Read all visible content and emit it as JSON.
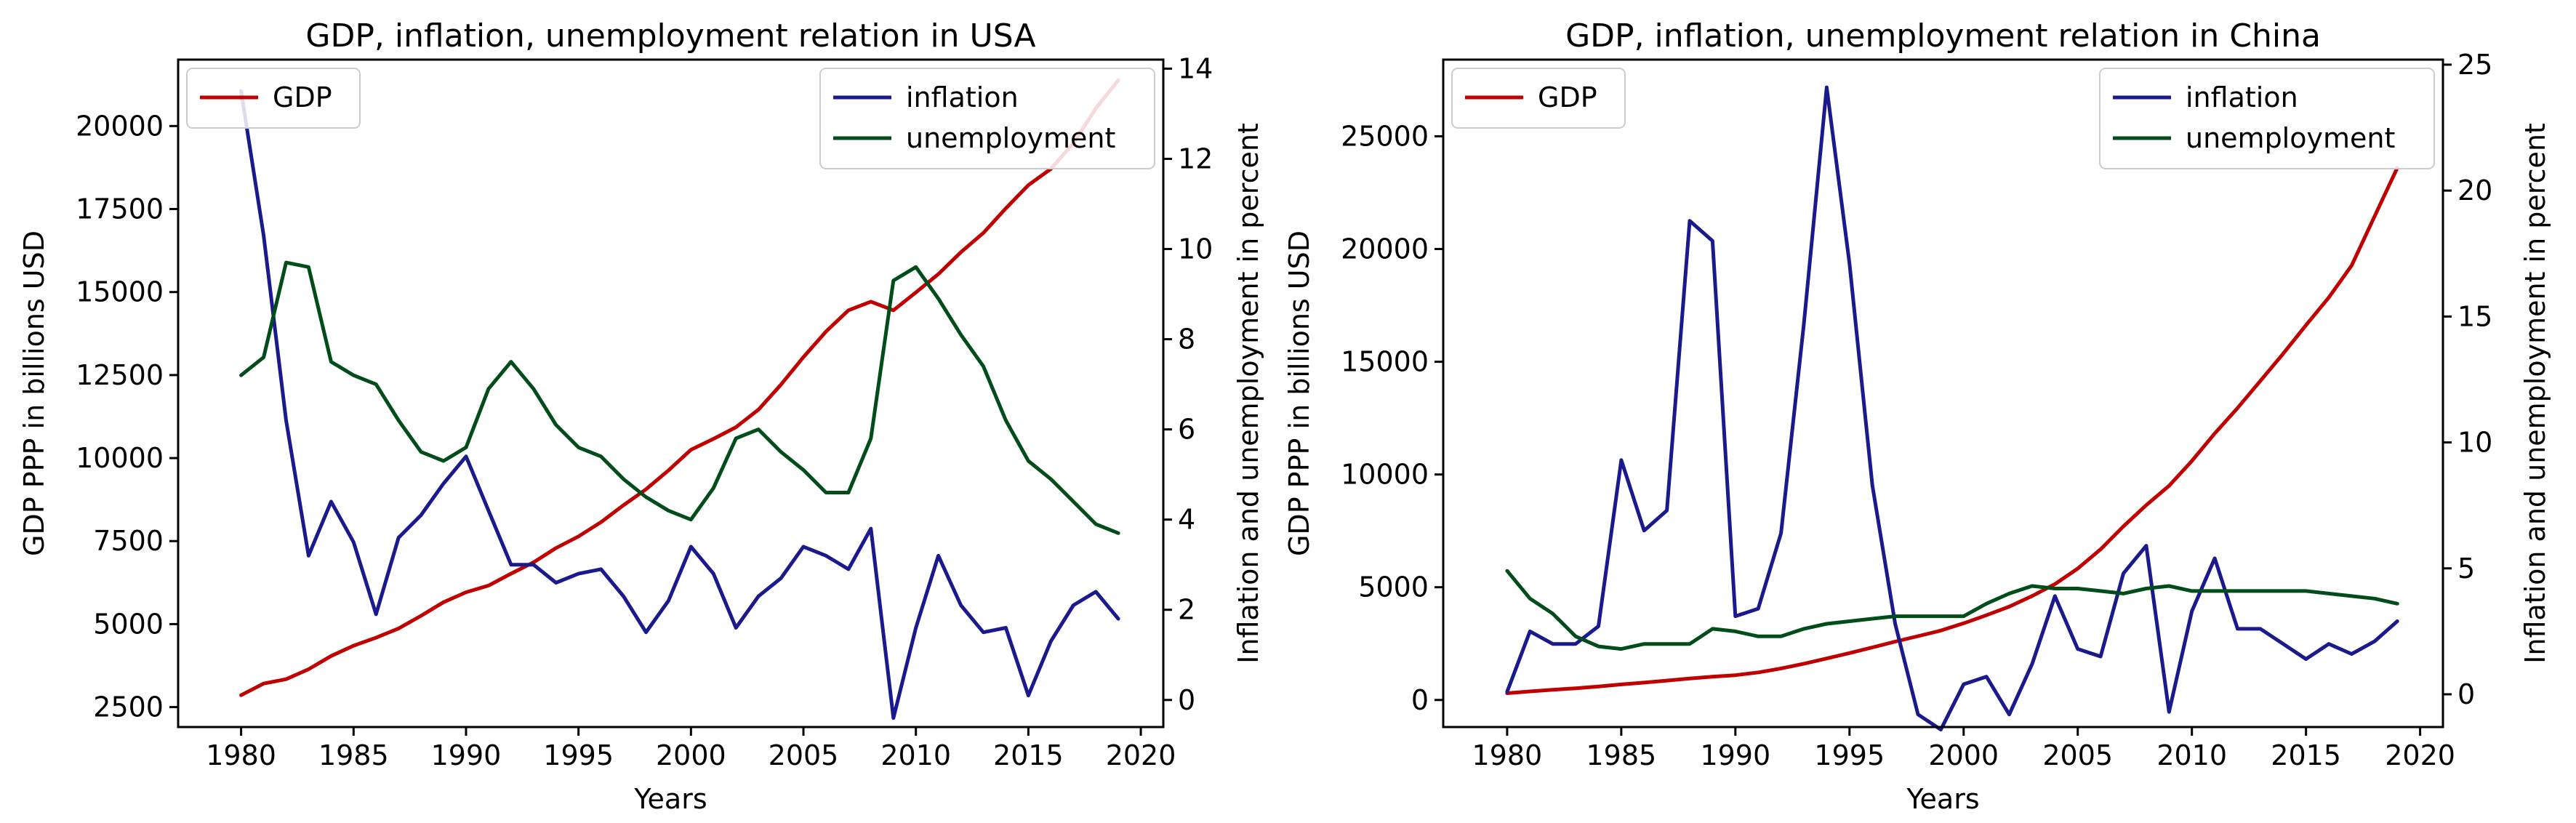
{
  "chart_data": [
    {
      "type": "line",
      "title": "GDP, inflation, unemployment relation in USA",
      "xlabel": "Years",
      "ylabel": "GDP PPP in billions USD",
      "ylabel_right": "Inflation and unemployment in percent",
      "xlim": [
        1977.2,
        2021.0
      ],
      "ylim": [
        1900,
        22000
      ],
      "ylim_right": [
        -0.6,
        14.2
      ],
      "x_ticks": [
        1980,
        1985,
        1990,
        1995,
        2000,
        2005,
        2010,
        2015,
        2020
      ],
      "y_ticks": [
        2500,
        5000,
        7500,
        10000,
        12500,
        15000,
        17500,
        20000
      ],
      "y_right_ticks": [
        0,
        2,
        4,
        6,
        8,
        10,
        12,
        14
      ],
      "x": [
        1980,
        1981,
        1982,
        1983,
        1984,
        1985,
        1986,
        1987,
        1988,
        1989,
        1990,
        1991,
        1992,
        1993,
        1994,
        1995,
        1996,
        1997,
        1998,
        1999,
        2000,
        2001,
        2002,
        2003,
        2004,
        2005,
        2006,
        2007,
        2008,
        2009,
        2010,
        2011,
        2012,
        2013,
        2014,
        2015,
        2016,
        2017,
        2018,
        2019
      ],
      "legend_left": "upper-left",
      "legend_right": "upper-right",
      "series": [
        {
          "name": "GDP",
          "axis": "left",
          "color": "#c00000",
          "values": [
            2860,
            3210,
            3340,
            3640,
            4040,
            4350,
            4590,
            4870,
            5250,
            5660,
            5960,
            6160,
            6520,
            6860,
            7290,
            7640,
            8070,
            8580,
            9060,
            9630,
            10250,
            10580,
            10930,
            11460,
            12210,
            13040,
            13810,
            14450,
            14710,
            14450,
            14990,
            15540,
            16200,
            16780,
            17520,
            18220,
            18710,
            19480,
            20530,
            21380
          ]
        },
        {
          "name": "inflation",
          "axis": "right",
          "color": "#1a1a8c",
          "values": [
            13.5,
            10.3,
            6.2,
            3.2,
            4.4,
            3.5,
            1.9,
            3.6,
            4.1,
            4.8,
            5.4,
            4.2,
            3.0,
            3.0,
            2.6,
            2.8,
            2.9,
            2.3,
            1.5,
            2.2,
            3.4,
            2.8,
            1.6,
            2.3,
            2.7,
            3.4,
            3.2,
            2.9,
            3.8,
            -0.4,
            1.6,
            3.2,
            2.1,
            1.5,
            1.6,
            0.1,
            1.3,
            2.1,
            2.4,
            1.8
          ]
        },
        {
          "name": "unemployment",
          "axis": "right",
          "color": "#004d1a",
          "values": [
            7.2,
            7.6,
            9.7,
            9.6,
            7.5,
            7.2,
            7.0,
            6.2,
            5.5,
            5.3,
            5.6,
            6.9,
            7.5,
            6.9,
            6.1,
            5.6,
            5.4,
            4.9,
            4.5,
            4.2,
            4.0,
            4.7,
            5.8,
            6.0,
            5.5,
            5.1,
            4.6,
            4.6,
            5.8,
            9.3,
            9.6,
            8.9,
            8.1,
            7.4,
            6.2,
            5.3,
            4.9,
            4.4,
            3.9,
            3.7
          ]
        }
      ]
    },
    {
      "type": "line",
      "title": "GDP, inflation, unemployment relation in China",
      "xlabel": "Years",
      "ylabel": "GDP PPP in billions USD",
      "ylabel_right": "Inflation and unemployment in percent",
      "xlim": [
        1977.2,
        2021.0
      ],
      "ylim": [
        -1200,
        28400
      ],
      "ylim_right": [
        -1.3,
        25.2
      ],
      "x_ticks": [
        1980,
        1985,
        1990,
        1995,
        2000,
        2005,
        2010,
        2015,
        2020
      ],
      "y_ticks": [
        0,
        5000,
        10000,
        15000,
        20000,
        25000
      ],
      "y_right_ticks": [
        0,
        5,
        10,
        15,
        20,
        25
      ],
      "x": [
        1980,
        1981,
        1982,
        1983,
        1984,
        1985,
        1986,
        1987,
        1988,
        1989,
        1990,
        1991,
        1992,
        1993,
        1994,
        1995,
        1996,
        1997,
        1998,
        1999,
        2000,
        2001,
        2002,
        2003,
        2004,
        2005,
        2006,
        2007,
        2008,
        2009,
        2010,
        2011,
        2012,
        2013,
        2014,
        2015,
        2016,
        2017,
        2018,
        2019
      ],
      "legend_left": "upper-left",
      "legend_right": "upper-right",
      "series": [
        {
          "name": "GDP",
          "axis": "left",
          "color": "#c00000",
          "values": [
            300,
            380,
            450,
            520,
            600,
            690,
            770,
            860,
            950,
            1030,
            1100,
            1220,
            1400,
            1610,
            1840,
            2080,
            2330,
            2590,
            2830,
            3080,
            3400,
            3760,
            4140,
            4610,
            5140,
            5830,
            6680,
            7700,
            8640,
            9500,
            10600,
            11820,
            12950,
            14150,
            15360,
            16620,
            17850,
            19270,
            21440,
            23600
          ]
        },
        {
          "name": "inflation",
          "axis": "right",
          "color": "#1a1a8c",
          "values": [
            0.1,
            2.5,
            2.0,
            2.0,
            2.7,
            9.3,
            6.5,
            7.3,
            18.8,
            18.0,
            3.1,
            3.4,
            6.4,
            14.7,
            24.1,
            17.1,
            8.3,
            2.8,
            -0.8,
            -1.4,
            0.4,
            0.7,
            -0.8,
            1.2,
            3.9,
            1.8,
            1.5,
            4.8,
            5.9,
            -0.7,
            3.3,
            5.4,
            2.6,
            2.6,
            2.0,
            1.4,
            2.0,
            1.6,
            2.1,
            2.9
          ]
        },
        {
          "name": "unemployment",
          "axis": "right",
          "color": "#004d1a",
          "values": [
            4.9,
            3.8,
            3.2,
            2.3,
            1.9,
            1.8,
            2.0,
            2.0,
            2.0,
            2.6,
            2.5,
            2.3,
            2.3,
            2.6,
            2.8,
            2.9,
            3.0,
            3.1,
            3.1,
            3.1,
            3.1,
            3.6,
            4.0,
            4.3,
            4.2,
            4.2,
            4.1,
            4.0,
            4.2,
            4.3,
            4.1,
            4.1,
            4.1,
            4.1,
            4.1,
            4.1,
            4.0,
            3.9,
            3.8,
            3.6
          ]
        }
      ]
    }
  ]
}
